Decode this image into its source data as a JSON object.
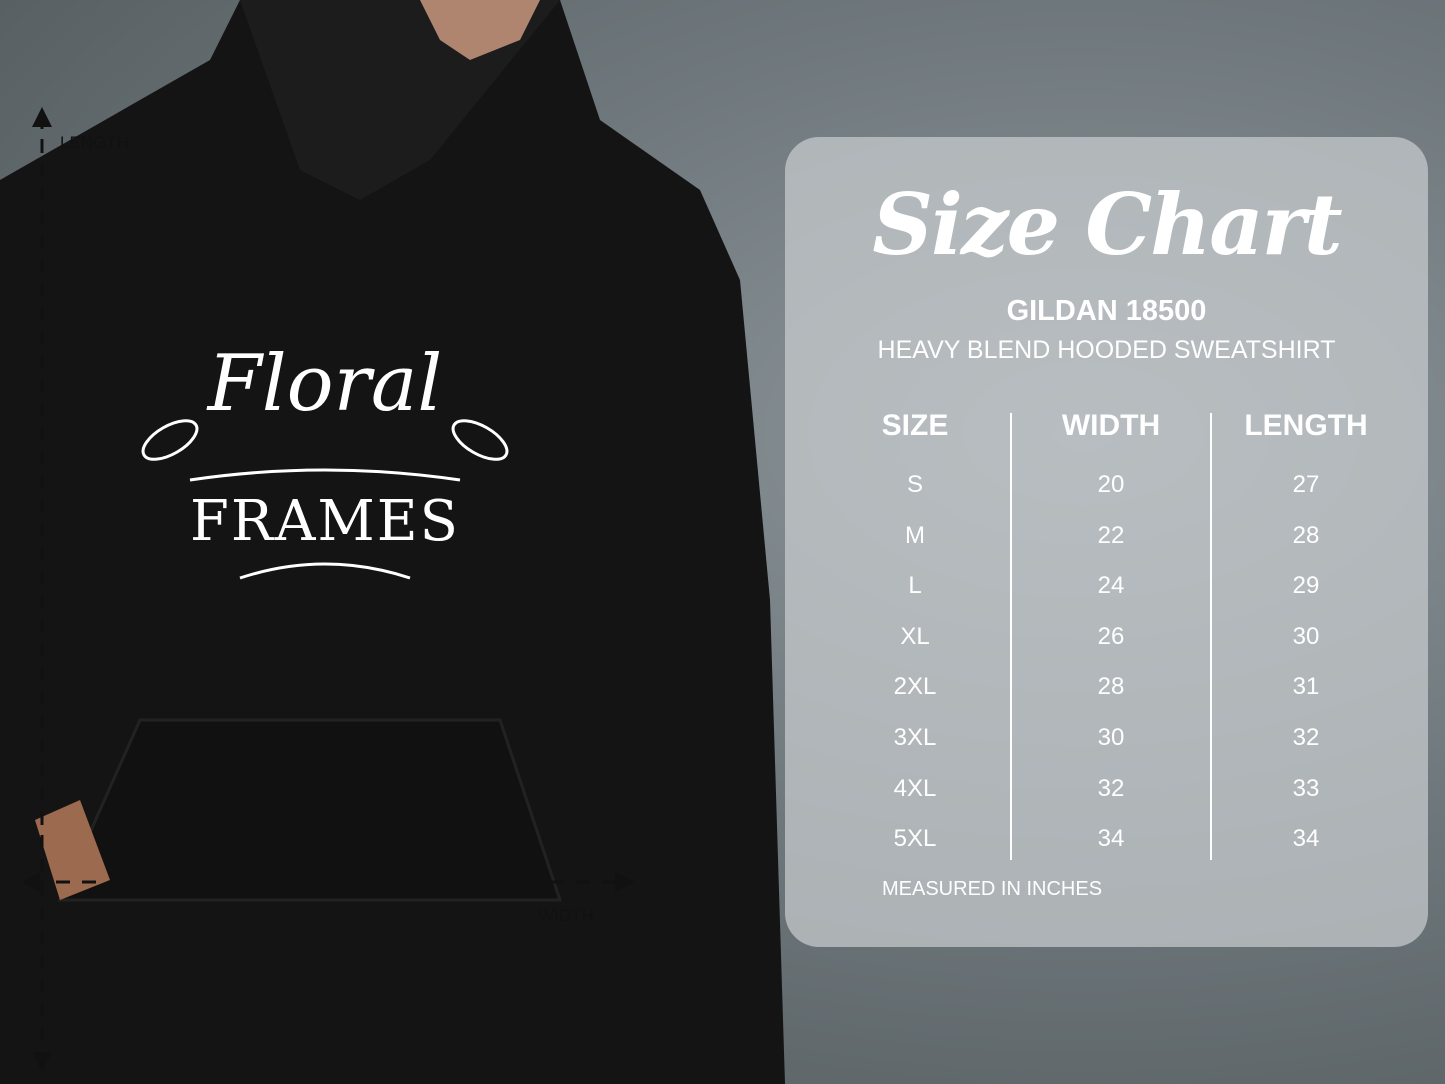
{
  "measure_labels": {
    "length": "LENGTH",
    "width": "WIDTH"
  },
  "logo_text": "Floral Frames",
  "chart": {
    "title": "Size Chart",
    "brand": "GILDAN 18500",
    "product": "HEAVY BLEND HOODED SWEATSHIRT",
    "headers": [
      "SIZE",
      "WIDTH",
      "LENGTH"
    ],
    "rows": [
      [
        "S",
        "20",
        "27"
      ],
      [
        "M",
        "22",
        "28"
      ],
      [
        "L",
        "24",
        "29"
      ],
      [
        "XL",
        "26",
        "30"
      ],
      [
        "2XL",
        "28",
        "31"
      ],
      [
        "3XL",
        "30",
        "32"
      ],
      [
        "4XL",
        "32",
        "33"
      ],
      [
        "5XL",
        "34",
        "34"
      ]
    ],
    "note": "MEASURED IN INCHES"
  }
}
